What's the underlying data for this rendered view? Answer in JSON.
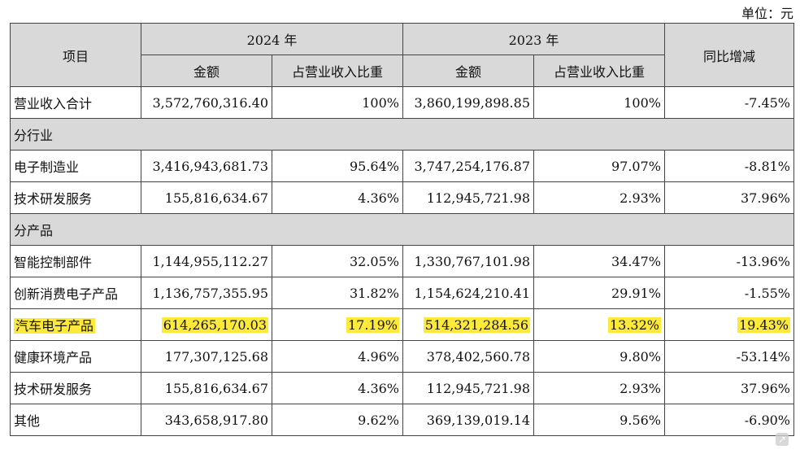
{
  "unit_label": "单位：元",
  "header": {
    "item": "项目",
    "y2024": "2024 年",
    "y2023": "2023 年",
    "yoy": "同比增减",
    "amount": "金额",
    "share": "占营业收入比重"
  },
  "total": {
    "label": "营业收入合计",
    "a2024": "3,572,760,316.40",
    "s2024": "100%",
    "a2023": "3,860,199,898.85",
    "s2023": "100%",
    "yoy": "-7.45%"
  },
  "section_industry": "分行业",
  "industry": [
    {
      "label": "电子制造业",
      "a2024": "3,416,943,681.73",
      "s2024": "95.64%",
      "a2023": "3,747,254,176.87",
      "s2023": "97.07%",
      "yoy": "-8.81%"
    },
    {
      "label": "技术研发服务",
      "a2024": "155,816,634.67",
      "s2024": "4.36%",
      "a2023": "112,945,721.98",
      "s2023": "2.93%",
      "yoy": "37.96%"
    }
  ],
  "section_product": "分产品",
  "product": [
    {
      "label": "智能控制部件",
      "a2024": "1,144,955,112.27",
      "s2024": "32.05%",
      "a2023": "1,330,767,101.98",
      "s2023": "34.47%",
      "yoy": "-13.96%"
    },
    {
      "label": "创新消费电子产品",
      "a2024": "1,136,757,355.95",
      "s2024": "31.82%",
      "a2023": "1,154,624,210.41",
      "s2023": "29.91%",
      "yoy": "-1.55%"
    },
    {
      "label": "汽车电子产品",
      "a2024": "614,265,170.03",
      "s2024": "17.19%",
      "a2023": "514,321,284.56",
      "s2023": "13.32%",
      "yoy": "19.43%"
    },
    {
      "label": "健康环境产品",
      "a2024": "177,307,125.68",
      "s2024": "4.96%",
      "a2023": "378,402,560.78",
      "s2023": "9.80%",
      "yoy": "-53.14%"
    },
    {
      "label": "技术研发服务",
      "a2024": "155,816,634.67",
      "s2024": "4.36%",
      "a2023": "112,945,721.98",
      "s2023": "2.93%",
      "yoy": "37.96%"
    },
    {
      "label": "其他",
      "a2024": "343,658,917.80",
      "s2024": "9.62%",
      "a2023": "369,139,019.14",
      "s2023": "9.56%",
      "yoy": "-6.90%"
    }
  ],
  "highlight_color": "#fde93a",
  "watermark_icon": "logo-icon"
}
